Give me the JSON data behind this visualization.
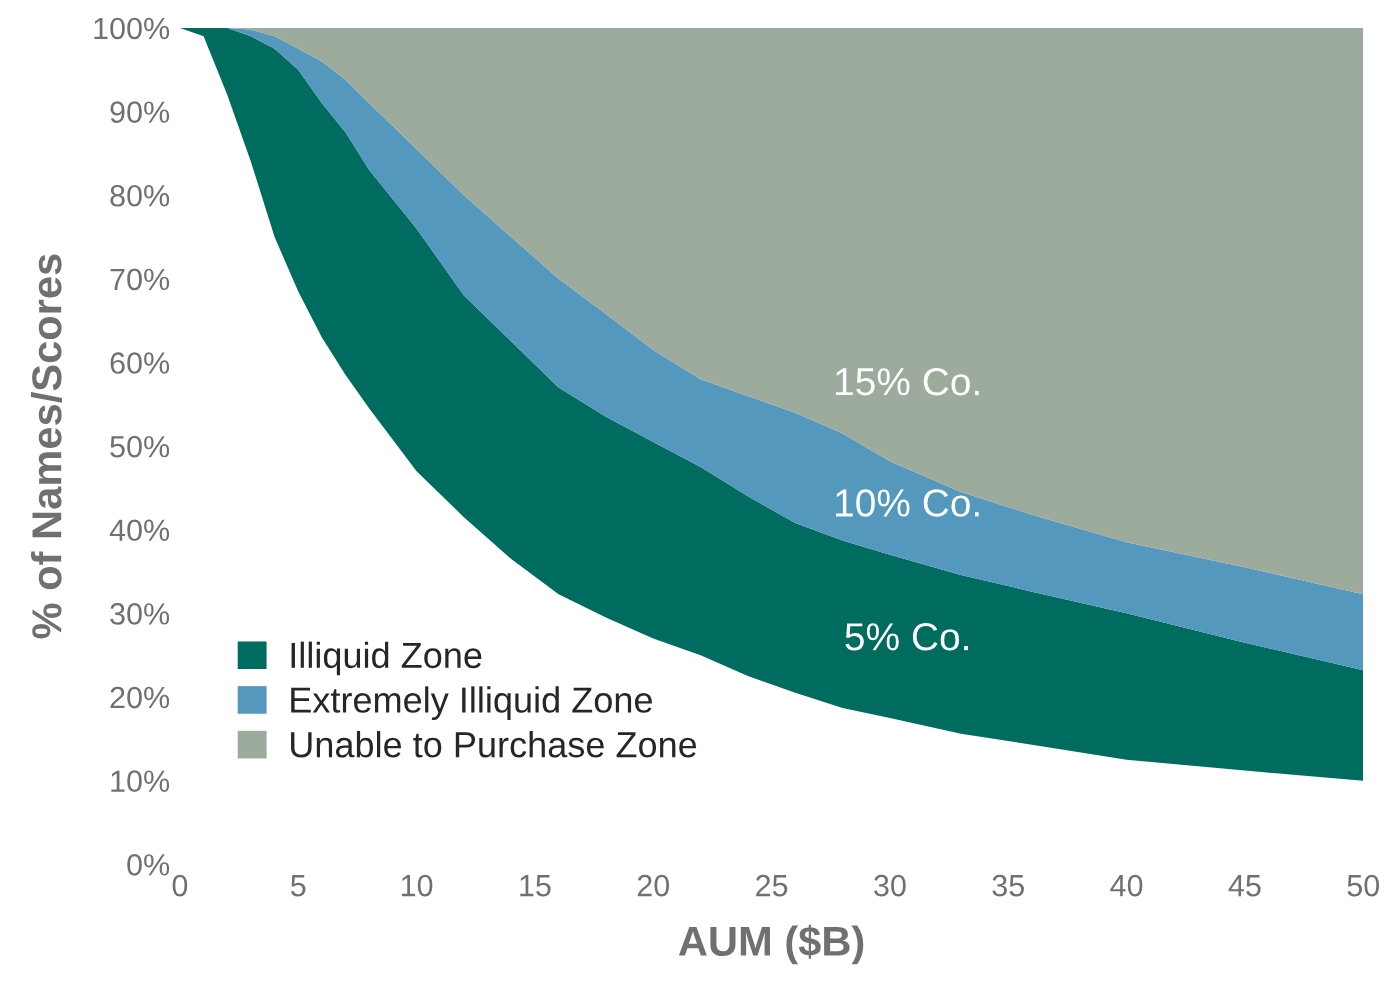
{
  "chart_data": {
    "type": "area",
    "stacked": true,
    "xlabel": "AUM ($B)",
    "ylabel": "% of Names/Scores",
    "x": [
      0,
      1,
      2,
      3,
      4,
      5,
      6,
      7,
      8,
      10,
      12,
      14,
      16,
      18,
      20,
      22,
      24,
      26,
      28,
      30,
      33,
      36,
      40,
      45,
      50
    ],
    "series": [
      {
        "color": "#ffffff",
        "values": [
          100,
          99,
          92,
          84,
          75,
          68.5,
          63,
          58.5,
          54.5,
          47,
          41.5,
          36.5,
          32.3,
          29.5,
          27,
          25,
          22.5,
          20.5,
          18.7,
          17.5,
          15.6,
          14.3,
          12.5,
          11.2,
          10
        ]
      },
      {
        "name": "Illiquid Zone",
        "color": "#006b5f",
        "values": [
          0,
          1,
          8,
          15,
          22.5,
          26.5,
          28,
          29,
          28.5,
          29,
          26.5,
          26,
          24.7,
          24,
          23.5,
          22.5,
          21.5,
          20.3,
          20,
          19.5,
          19,
          18.3,
          17.5,
          15.3,
          13.2
        ]
      },
      {
        "name": "Extremely Illiquid Zone",
        "color": "#5498be",
        "values": [
          0,
          0,
          0,
          0.8,
          1.5,
          2.5,
          5,
          6.3,
          8,
          9.5,
          12,
          12.5,
          13,
          12.3,
          11,
          10.5,
          12,
          13.2,
          12.8,
          11.2,
          9.9,
          9.2,
          8.5,
          9,
          9.1
        ]
      },
      {
        "name": "Unable to Purchase Zone",
        "color": "#9dab9d",
        "values": [
          0,
          0,
          0,
          0.2,
          1,
          2.5,
          4,
          6.2,
          9,
          14.5,
          20,
          25,
          30,
          34.2,
          38.5,
          42,
          44,
          46,
          48.5,
          51.8,
          55.5,
          58.2,
          61.5,
          64.5,
          67.7
        ]
      }
    ],
    "annotations": [
      "15% Co.",
      "10% Co.",
      "5% Co."
    ],
    "xlim": [
      0,
      50
    ],
    "xticks": [
      0,
      5,
      10,
      15,
      20,
      25,
      30,
      35,
      40,
      45,
      50
    ],
    "ylim": [
      0,
      100
    ],
    "yticks": [
      {
        "value": 0,
        "label": "0%"
      },
      {
        "value": 10,
        "label": "10%"
      },
      {
        "value": 20,
        "label": "20%"
      },
      {
        "value": 30,
        "label": "30%"
      },
      {
        "value": 40,
        "label": "40%"
      },
      {
        "value": 50,
        "label": "50%"
      },
      {
        "value": 60,
        "label": "60%"
      },
      {
        "value": 70,
        "label": "70%"
      },
      {
        "value": 80,
        "label": "80%"
      },
      {
        "value": 90,
        "label": "90%"
      },
      {
        "value": 100,
        "label": "100%"
      }
    ],
    "legend": "bottom left"
  }
}
